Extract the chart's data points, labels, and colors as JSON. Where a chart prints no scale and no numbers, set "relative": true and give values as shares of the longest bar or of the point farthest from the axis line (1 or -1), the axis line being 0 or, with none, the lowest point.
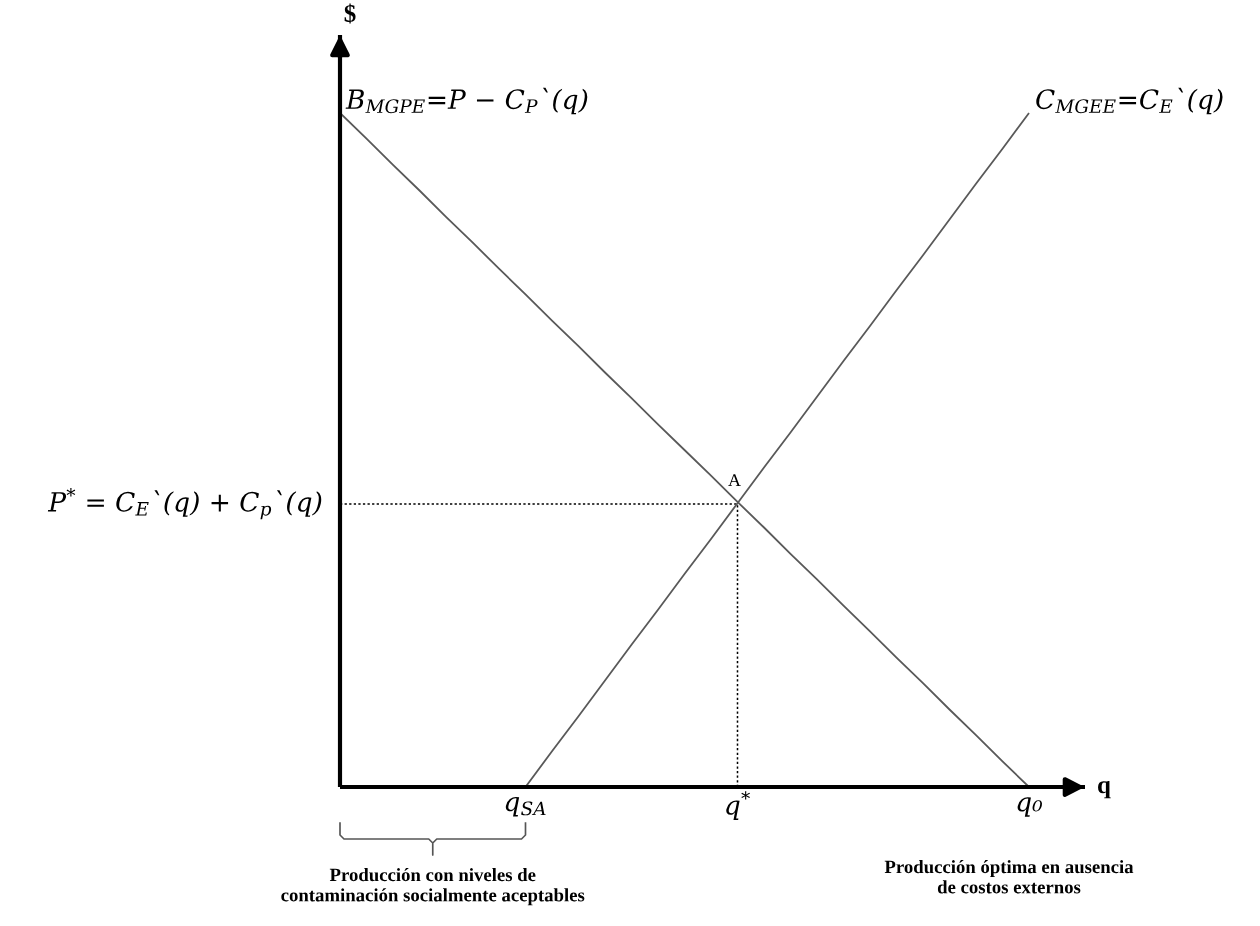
{
  "chart_data": {
    "type": "line",
    "relative": true,
    "xlabel": "q",
    "ylabel": "$",
    "categories": [
      null,
      null,
      null,
      null,
      null,
      null,
      null,
      "q$_{SA}$",
      null,
      null,
      null,
      null,
      null,
      null,
      null,
      "q$^{*}$",
      null,
      null,
      null,
      null,
      null,
      null,
      null,
      null,
      null,
      null,
      "q₀"
    ],
    "tick_labels": "x",
    "series": [
      {
        "name": "B$_{MGPE}$=P − C$_{P}$`(q)",
        "color": "#595959",
        "line_style": "solid",
        "values": [
          1.0,
          0.962,
          0.923,
          0.885,
          0.846,
          0.808,
          0.769,
          0.731,
          0.692,
          0.654,
          0.615,
          0.577,
          0.538,
          0.5,
          0.462,
          0.423,
          0.385,
          0.346,
          0.308,
          0.269,
          0.231,
          0.192,
          0.154,
          0.115,
          0.077,
          0.038,
          0.0
        ]
      },
      {
        "name": "C$_{MGEE}$=C$_{E}$`(q)",
        "color": "#595959",
        "line_style": "solid",
        "values": [
          null,
          null,
          null,
          null,
          null,
          null,
          null,
          0.0,
          0.053,
          0.105,
          0.158,
          0.211,
          0.263,
          0.316,
          0.368,
          0.421,
          0.474,
          0.526,
          0.579,
          0.632,
          0.684,
          0.737,
          0.789,
          0.842,
          0.895,
          0.947,
          1.0
        ]
      }
    ],
    "annotations": [
      {
        "text": "A",
        "x": "q$^{*}$",
        "y": 0.42
      },
      "P$^{*}$ = C$_{E}$`(q) + C$_{p}$`(q)",
      "Producción con niveles de\ncontaminación socialmente aceptables",
      "Producción óptima en ausencia\nde costos externos"
    ]
  }
}
